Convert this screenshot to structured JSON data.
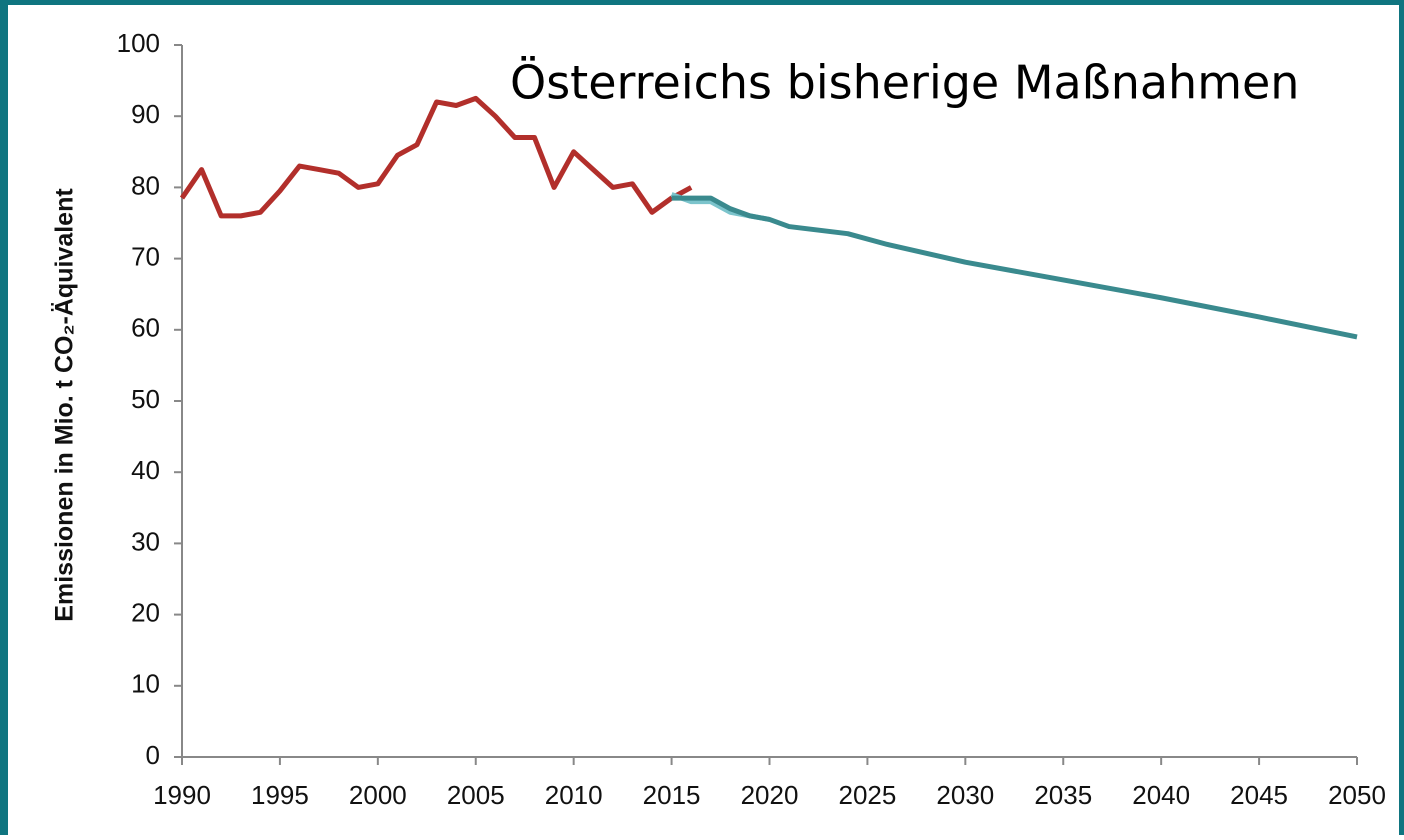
{
  "chart_data": {
    "type": "line",
    "title": "Österreichs bisherige Maßnahmen",
    "y_label": "Emissionen in Mio. t CO₂-Äquivalent",
    "series": [
      {
        "color": "#b22f2b",
        "x": [
          1990,
          1991,
          1992,
          1993,
          1994,
          1995,
          1996,
          1997,
          1998,
          1999,
          2000,
          2001,
          2002,
          2003,
          2004,
          2005,
          2006,
          2007,
          2008,
          2009,
          2010,
          2011,
          2012,
          2013,
          2014,
          2015,
          2016
        ],
        "values": [
          78.5,
          82.5,
          76,
          76,
          76.5,
          79.5,
          83,
          82.5,
          82,
          80,
          80.5,
          84.5,
          86,
          92,
          91.5,
          92.5,
          90,
          87,
          87,
          80,
          85,
          82.5,
          80,
          80.5,
          76.5,
          78.5,
          80
        ]
      },
      {
        "color": "#7cc4cc",
        "x": [
          2015,
          2016,
          2017,
          2018,
          2019,
          2020
        ],
        "values": [
          79,
          78,
          78,
          76.5,
          76,
          75.5
        ]
      },
      {
        "color": "#3a8a8e",
        "x": [
          2015,
          2016,
          2017,
          2018,
          2019,
          2020,
          2021,
          2024,
          2026,
          2030,
          2035,
          2040,
          2045,
          2050
        ],
        "values": [
          78.5,
          78.5,
          78.5,
          77,
          76,
          75.5,
          74.5,
          73.5,
          72,
          69.5,
          67,
          64.5,
          61.8,
          59
        ]
      }
    ],
    "xlim": [
      1990,
      2050
    ],
    "xticks": [
      1990,
      1995,
      2000,
      2005,
      2010,
      2015,
      2020,
      2025,
      2030,
      2035,
      2040,
      2045,
      2050
    ],
    "ylim": [
      0,
      100
    ],
    "yticks": [
      0,
      10,
      20,
      30,
      40,
      50,
      60,
      70,
      80,
      90,
      100
    ]
  }
}
